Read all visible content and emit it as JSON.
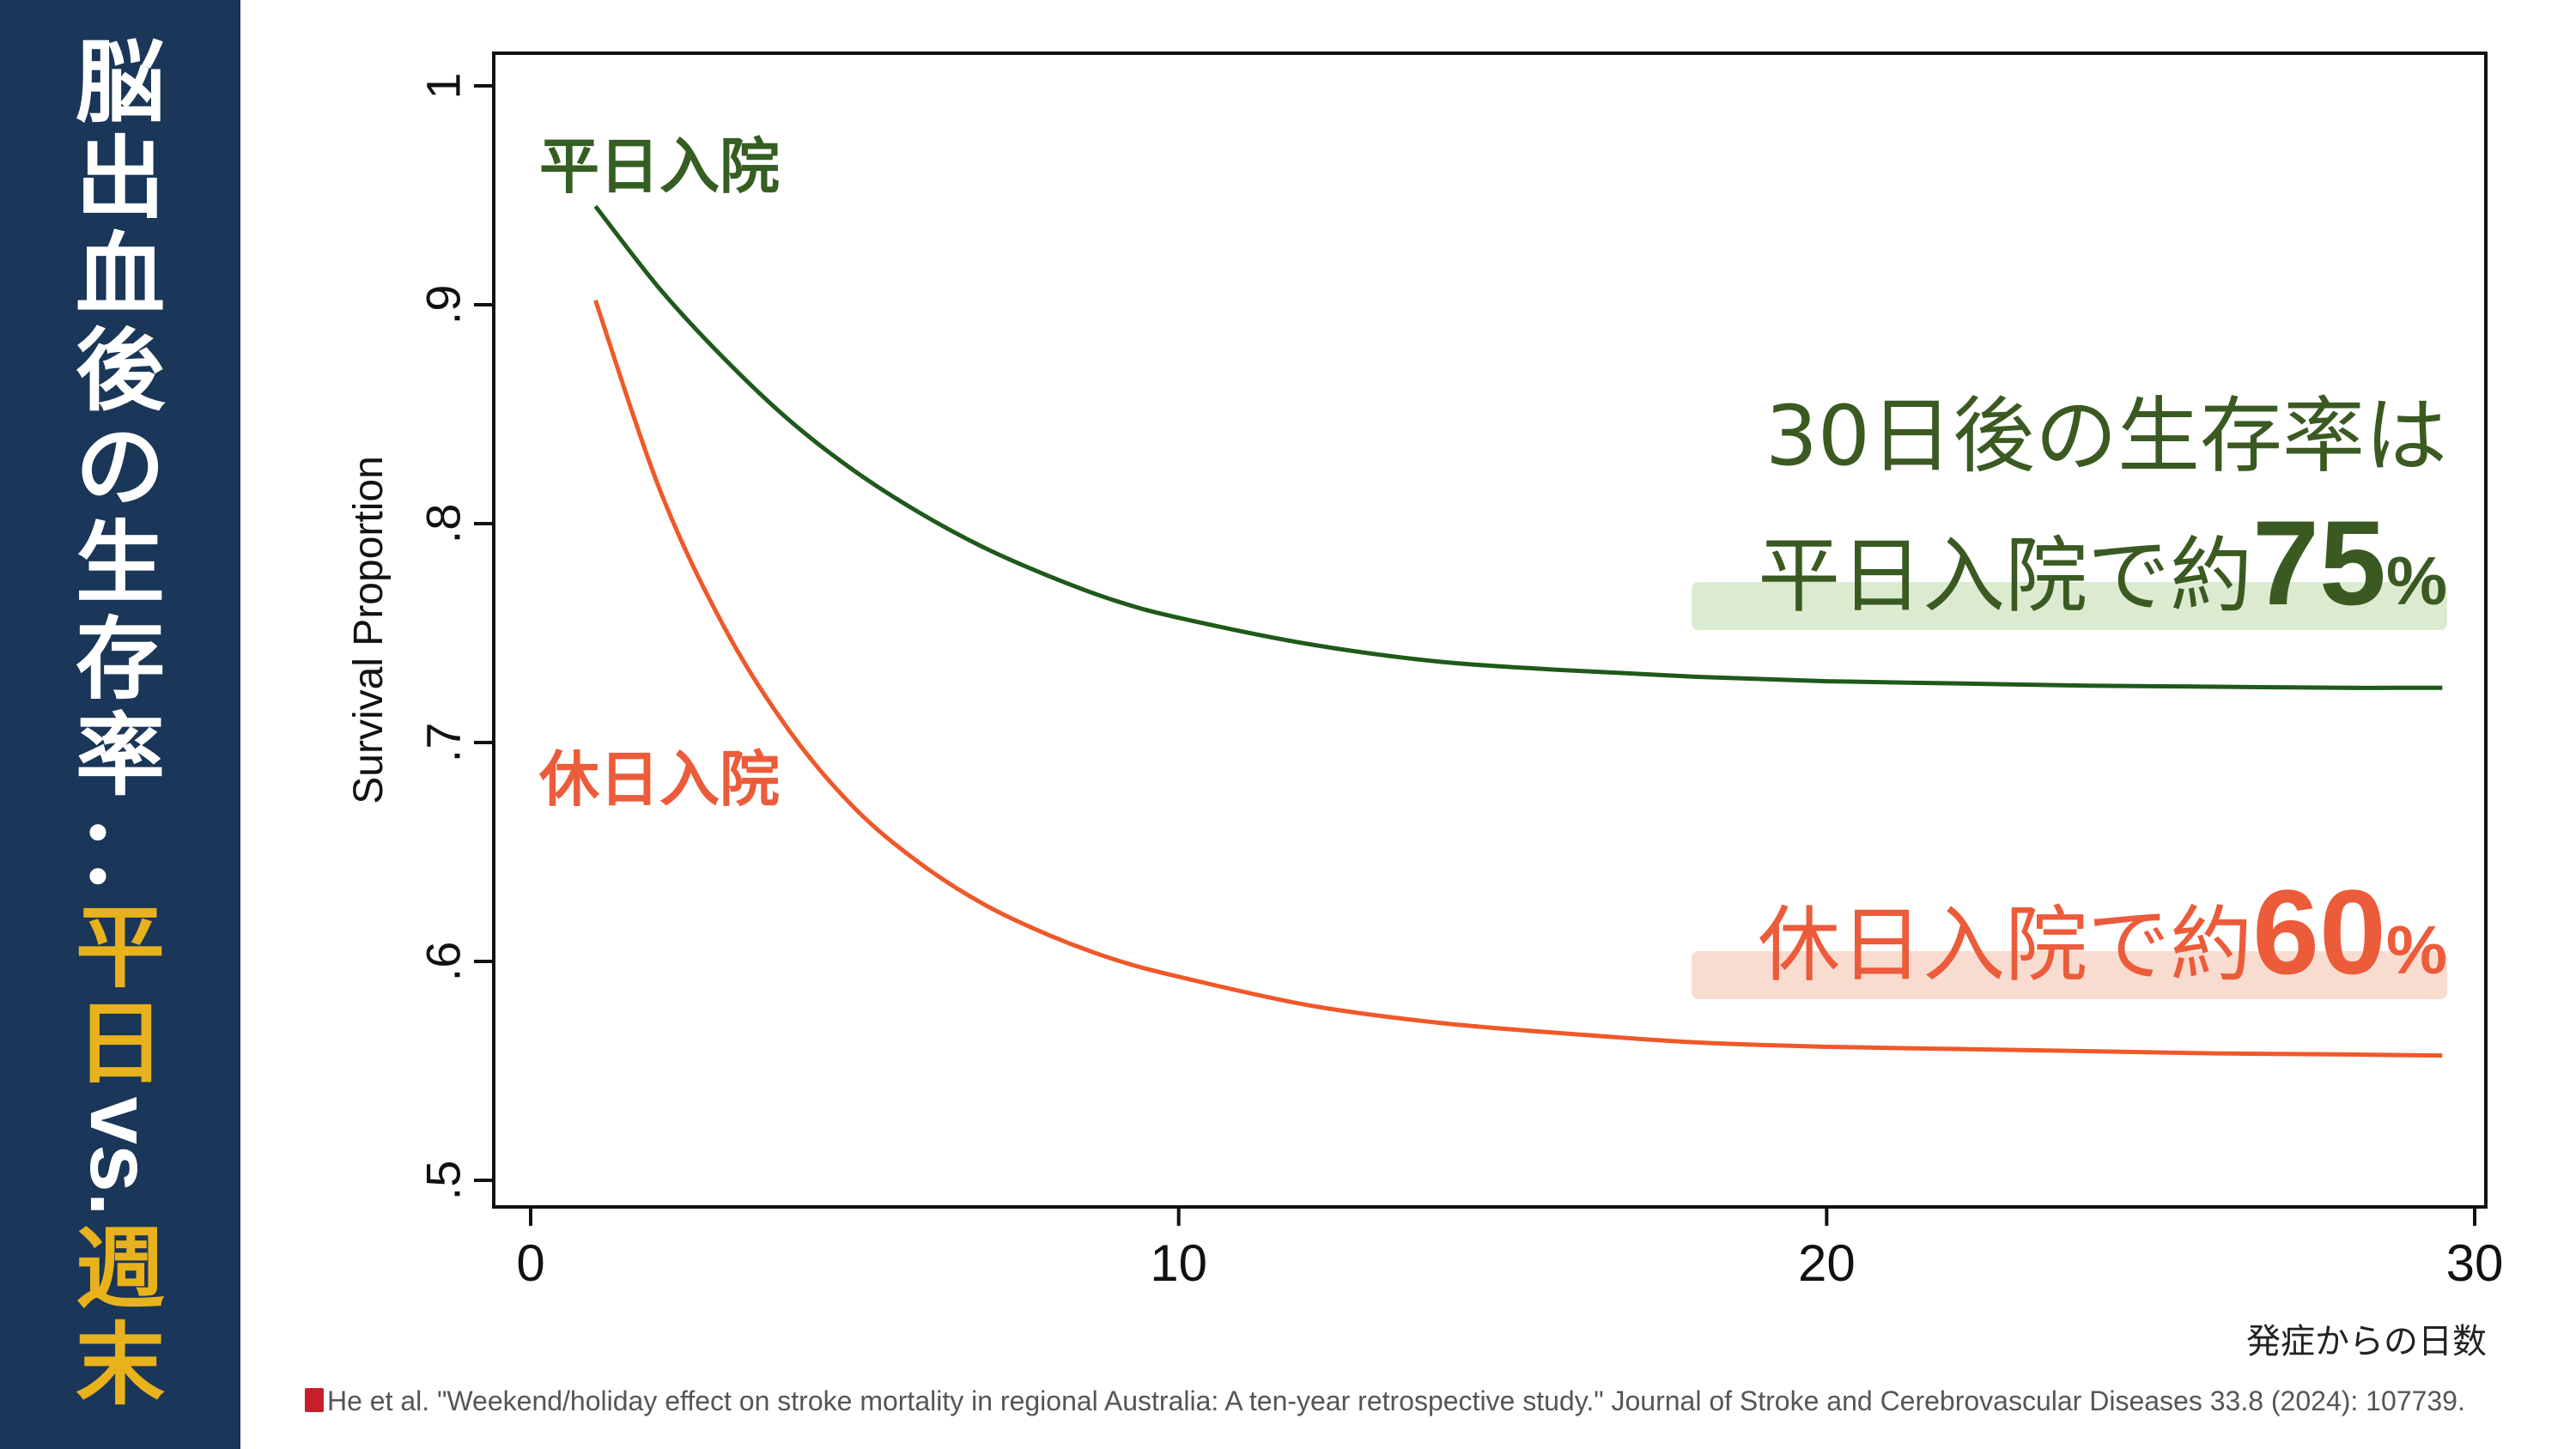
{
  "slide": {
    "title_white": [
      "脳",
      "出",
      "血",
      "後",
      "の",
      "生",
      "存",
      "率",
      "："
    ],
    "title_yellow_1": [
      "平",
      "日"
    ],
    "title_vs": "vs.",
    "title_yellow_2": [
      "週",
      "末"
    ],
    "annotation": {
      "line1": "30日後の生存率は",
      "weekday_prefix": "平日入院で約",
      "weekday_value": "75",
      "holiday_prefix": "休日入院で約",
      "holiday_value": "60",
      "percent": "%"
    },
    "citation": "He et al. \"Weekend/holiday effect on stroke mortality in regional Australia: A ten-year retrospective study.\" Journal of Stroke and Cerebrovascular Diseases 33.8 (2024): 107739."
  },
  "colors": {
    "sidebar": "#1a3658",
    "title_white": "#ffffff",
    "title_yellow": "#e8b21c",
    "weekday": "#1e5a1a",
    "holiday": "#f0582a",
    "weekday_text": "#355e22",
    "holiday_text": "#ec5b3a"
  },
  "chart_data": {
    "type": "line",
    "ylabel": "Survival Proportion",
    "xlabel": "発症からの日数",
    "xlim": [
      0,
      30
    ],
    "ylim": [
      0.5,
      1
    ],
    "x_ticks": [
      0,
      10,
      20,
      30
    ],
    "x_tick_labels": [
      "0",
      "10",
      "20",
      "30"
    ],
    "y_ticks": [
      0.5,
      0.6,
      0.7,
      0.8,
      0.9,
      1
    ],
    "y_tick_labels": [
      ".5",
      ".6",
      ".7",
      ".8",
      ".9",
      "1"
    ],
    "grid": false,
    "legend": "inline labels",
    "series": [
      {
        "name": "平日入院",
        "color": "#1e5a1a",
        "x": [
          1,
          2,
          3,
          4,
          5,
          6,
          7,
          8,
          9,
          10,
          12,
          14,
          16,
          18,
          20,
          22,
          24,
          26,
          28,
          29.5
        ],
        "values": [
          0.945,
          0.907,
          0.875,
          0.847,
          0.824,
          0.805,
          0.789,
          0.776,
          0.765,
          0.757,
          0.745,
          0.737,
          0.733,
          0.73,
          0.728,
          0.727,
          0.726,
          0.7255,
          0.725,
          0.725
        ]
      },
      {
        "name": "休日入院",
        "color": "#f0582a",
        "x": [
          1,
          2,
          3,
          4,
          5,
          6,
          7,
          8,
          9,
          10,
          12,
          14,
          16,
          18,
          20,
          22,
          24,
          26,
          28,
          29.5
        ],
        "values": [
          0.902,
          0.815,
          0.752,
          0.705,
          0.67,
          0.645,
          0.626,
          0.612,
          0.601,
          0.593,
          0.58,
          0.572,
          0.567,
          0.563,
          0.561,
          0.56,
          0.559,
          0.558,
          0.5575,
          0.557
        ]
      }
    ]
  }
}
